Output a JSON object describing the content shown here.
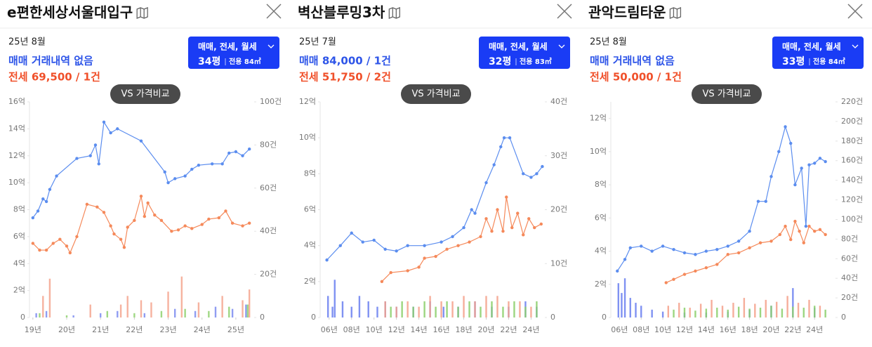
{
  "panels": [
    {
      "title": "e편한세상서울대입구",
      "date": "25년 8월",
      "sale": "매매 거래내역 없음",
      "jeonse": "전세 69,500 / 1건",
      "filter": "매매, 전세, 월세",
      "pyeong": "34평",
      "area": "전용 84㎡",
      "compare": "VS 가격비교"
    },
    {
      "title": "벽산블루밍3차",
      "date": "25년 7월",
      "sale": "매매 84,000 / 1건",
      "jeonse": "전세 51,750 / 2건",
      "filter": "매매, 전세, 월세",
      "pyeong": "32평",
      "area": "전용 83㎡",
      "compare": "VS 가격비교"
    },
    {
      "title": "관악드림타운",
      "date": "25년 8월",
      "sale": "매매 거래내역 없음",
      "jeonse": "전세 50,000 / 1건",
      "filter": "매매, 전세, 월세",
      "pyeong": "33평",
      "area": "전용 84㎡",
      "compare": "VS 가격비교"
    }
  ],
  "chart_data": [
    {
      "type": "line",
      "xlim": [
        2018.9,
        2025.5
      ],
      "ylim": [
        0,
        16
      ],
      "y2lim": [
        0,
        100
      ],
      "xticks": [
        {
          "value": 2019,
          "label": "19년"
        },
        {
          "value": 2020,
          "label": "20년"
        },
        {
          "value": 2021,
          "label": "21년"
        },
        {
          "value": 2022,
          "label": "22년"
        },
        {
          "value": 2023,
          "label": "23년"
        },
        {
          "value": 2024,
          "label": "24년"
        },
        {
          "value": 2025,
          "label": "25년"
        }
      ],
      "yticks": [
        0,
        {
          "value": 2,
          "label": "2억"
        },
        {
          "value": 4,
          "label": "4억"
        },
        {
          "value": 6,
          "label": "6억"
        },
        {
          "value": 8,
          "label": "8억"
        },
        {
          "value": 10,
          "label": "10억"
        },
        {
          "value": 12,
          "label": "12억"
        },
        {
          "value": 14,
          "label": "14억"
        },
        {
          "value": 16,
          "label": "16억"
        }
      ],
      "y2ticks": [
        0,
        {
          "value": 20,
          "label": "20건"
        },
        {
          "value": 40,
          "label": "40건"
        },
        {
          "value": 60,
          "label": "60건"
        },
        {
          "value": 80,
          "label": "80건"
        },
        {
          "value": 100,
          "label": "100건"
        }
      ],
      "series": [
        {
          "type": "bar",
          "axis": "y2",
          "color": "#f4a48e",
          "x": [
            2019.3,
            2019.5,
            2020.7,
            2021.6,
            2021.8,
            2022.2,
            2022.5,
            2023.0,
            2023.4,
            2023.9,
            2024.6,
            2025.2,
            2025.4
          ],
          "values": [
            10,
            18,
            6,
            6,
            10,
            8,
            7,
            12,
            19,
            7,
            10,
            8,
            13
          ]
        },
        {
          "type": "bar",
          "axis": "y2",
          "color": "#7c8cf0",
          "x": [
            2019.1,
            2019.4,
            2020.2,
            2021.0,
            2021.5,
            2022.3,
            2023.2,
            2023.8,
            2024.4,
            2024.9,
            2025.3
          ],
          "values": [
            2,
            3,
            1,
            2,
            3,
            2,
            4,
            3,
            5,
            4,
            6
          ]
        },
        {
          "type": "bar",
          "axis": "y2",
          "color": "#8fd16e",
          "x": [
            2019.2,
            2020.0,
            2021.2,
            2022.0,
            2022.8,
            2023.5,
            2024.2,
            2024.8,
            2025.35
          ],
          "values": [
            2,
            1,
            3,
            2,
            3,
            4,
            3,
            5,
            6
          ]
        },
        {
          "type": "line",
          "color": "#f5895a",
          "x": [
            2019.0,
            2019.2,
            2019.4,
            2019.6,
            2019.8,
            2020.0,
            2020.1,
            2020.3,
            2020.6,
            2020.9,
            2021.1,
            2021.3,
            2021.4,
            2021.6,
            2021.7,
            2021.8,
            2022.0,
            2022.2,
            2022.3,
            2022.4,
            2022.6,
            2022.8,
            2023.1,
            2023.3,
            2023.5,
            2023.7,
            2024.0,
            2024.2,
            2024.5,
            2024.7,
            2024.9,
            2025.2,
            2025.4
          ],
          "values": [
            5.5,
            5.0,
            5.0,
            5.5,
            5.8,
            5.3,
            4.8,
            6.0,
            8.4,
            8.2,
            7.8,
            6.8,
            6.2,
            5.8,
            5.2,
            6.7,
            7.2,
            9.0,
            7.5,
            8.5,
            7.6,
            7.2,
            6.4,
            6.5,
            6.8,
            6.6,
            6.9,
            7.3,
            7.4,
            7.9,
            7.0,
            6.8,
            7.0
          ]
        },
        {
          "type": "line",
          "color": "#5b8def",
          "x": [
            2019.0,
            2019.15,
            2019.3,
            2019.4,
            2019.5,
            2019.7,
            2020.3,
            2020.7,
            2020.85,
            2020.95,
            2021.1,
            2021.3,
            2021.5,
            2022.2,
            2022.9,
            2023.0,
            2023.2,
            2023.5,
            2023.7,
            2023.9,
            2024.3,
            2024.6,
            2024.8,
            2025.0,
            2025.2,
            2025.4
          ],
          "values": [
            7.4,
            7.9,
            8.8,
            8.6,
            9.5,
            10.5,
            11.8,
            12.0,
            12.8,
            11.4,
            14.5,
            13.7,
            14.0,
            13.1,
            10.8,
            10.0,
            10.3,
            10.5,
            11.0,
            11.3,
            11.4,
            11.4,
            12.2,
            12.3,
            12.0,
            12.5
          ]
        }
      ]
    },
    {
      "type": "line",
      "xlim": [
        2005.2,
        2025.1
      ],
      "ylim": [
        0,
        12
      ],
      "y2lim": [
        0,
        40
      ],
      "xticks": [
        {
          "value": 2006,
          "label": "06년"
        },
        {
          "value": 2008,
          "label": "08년"
        },
        {
          "value": 2010,
          "label": "10년"
        },
        {
          "value": 2012,
          "label": "12년"
        },
        {
          "value": 2014,
          "label": "14년"
        },
        {
          "value": 2016,
          "label": "16년"
        },
        {
          "value": 2018,
          "label": "18년"
        },
        {
          "value": 2020,
          "label": "20년"
        },
        {
          "value": 2022,
          "label": "22년"
        },
        {
          "value": 2024,
          "label": "24년"
        }
      ],
      "yticks": [
        0,
        {
          "value": 2,
          "label": "2억"
        },
        {
          "value": 4,
          "label": "4억"
        },
        {
          "value": 6,
          "label": "6억"
        },
        {
          "value": 8,
          "label": "8억"
        },
        {
          "value": 10,
          "label": "10억"
        },
        {
          "value": 12,
          "label": "12억"
        }
      ],
      "y2ticks": [
        0,
        {
          "value": 10,
          "label": "10건"
        },
        {
          "value": 20,
          "label": "20건"
        },
        {
          "value": 30,
          "label": "30건"
        },
        {
          "value": 40,
          "label": "40건"
        }
      ],
      "series": [
        {
          "type": "bar",
          "axis": "y2",
          "color": "#6a7ff0",
          "x": [
            2005.9,
            2006.3,
            2006.5,
            2007.2,
            2008.0,
            2008.7,
            2009.5,
            2010.3,
            2011.0,
            2012.0,
            2013.5,
            2015.0,
            2016.2,
            2017.5,
            2019.0,
            2020.5,
            2022.0,
            2023.5,
            2024.5
          ],
          "values": [
            4,
            2,
            7,
            3,
            2,
            4,
            3,
            2,
            3,
            2,
            2,
            3,
            2,
            2,
            3,
            2,
            2,
            3,
            2
          ]
        },
        {
          "type": "bar",
          "axis": "y2",
          "color": "#f4a08a",
          "x": [
            2011.0,
            2012.0,
            2013.0,
            2014.0,
            2015.0,
            2016.0,
            2017.0,
            2018.0,
            2019.0,
            2020.0,
            2021.0,
            2022.0,
            2023.0,
            2024.0
          ],
          "values": [
            3,
            2,
            3,
            2,
            4,
            3,
            3,
            4,
            3,
            4,
            4,
            3,
            3,
            2
          ]
        },
        {
          "type": "bar",
          "axis": "y2",
          "color": "#8bcf6a",
          "x": [
            2011.5,
            2012.5,
            2013.5,
            2014.5,
            2015.5,
            2016.5,
            2017.5,
            2018.5,
            2019.5,
            2020.5,
            2021.5,
            2022.5,
            2023.5,
            2024.5
          ],
          "values": [
            2,
            3,
            2,
            3,
            2,
            3,
            2,
            3,
            2,
            3,
            2,
            3,
            2,
            3
          ]
        },
        {
          "type": "line",
          "color": "#f5895a",
          "x": [
            2010.7,
            2011.5,
            2013.0,
            2014.0,
            2014.5,
            2015.5,
            2016.5,
            2017.5,
            2018.5,
            2019.5,
            2020.0,
            2020.5,
            2021.0,
            2021.5,
            2021.8,
            2022.3,
            2022.8,
            2023.3,
            2023.8,
            2024.3,
            2024.9
          ],
          "values": [
            2.0,
            2.5,
            2.6,
            2.8,
            3.3,
            3.4,
            3.8,
            4.0,
            4.2,
            4.5,
            5.5,
            4.8,
            6.0,
            4.8,
            6.7,
            5.0,
            5.8,
            4.6,
            5.5,
            5.0,
            5.2
          ]
        },
        {
          "type": "line",
          "color": "#5b8def",
          "x": [
            2005.8,
            2007.0,
            2008.0,
            2009.0,
            2010.0,
            2011.0,
            2012.0,
            2013.0,
            2014.5,
            2016.0,
            2017.0,
            2018.0,
            2018.7,
            2019.0,
            2020.0,
            2020.7,
            2021.3,
            2021.6,
            2022.1,
            2023.3,
            2024.0,
            2024.5,
            2025.0
          ],
          "values": [
            3.2,
            4.0,
            4.7,
            4.2,
            4.3,
            3.8,
            3.7,
            4.0,
            4.0,
            4.2,
            4.5,
            5.0,
            6.0,
            5.8,
            7.5,
            8.5,
            9.5,
            10.0,
            10.0,
            8.0,
            7.8,
            8.0,
            8.4
          ]
        }
      ]
    },
    {
      "type": "line",
      "xlim": [
        2005.2,
        2025.8
      ],
      "ylim": [
        0,
        13
      ],
      "y2lim": [
        0,
        220
      ],
      "xticks": [
        {
          "value": 2006,
          "label": "06년"
        },
        {
          "value": 2008,
          "label": "08년"
        },
        {
          "value": 2010,
          "label": "10년"
        },
        {
          "value": 2012,
          "label": "12년"
        },
        {
          "value": 2014,
          "label": "14년"
        },
        {
          "value": 2016,
          "label": "16년"
        },
        {
          "value": 2018,
          "label": "18년"
        },
        {
          "value": 2020,
          "label": "20년"
        },
        {
          "value": 2022,
          "label": "22년"
        },
        {
          "value": 2024,
          "label": "24년"
        }
      ],
      "yticks": [
        0,
        {
          "value": 2,
          "label": "2억"
        },
        {
          "value": 4,
          "label": "4억"
        },
        {
          "value": 6,
          "label": "6억"
        },
        {
          "value": 8,
          "label": "8억"
        },
        {
          "value": 10,
          "label": "10억"
        },
        {
          "value": 12,
          "label": "12억"
        }
      ],
      "y2ticks": [
        0,
        {
          "value": 20,
          "label": "20건"
        },
        {
          "value": 40,
          "label": "40건"
        },
        {
          "value": 60,
          "label": "60건"
        },
        {
          "value": 80,
          "label": "80건"
        },
        {
          "value": 100,
          "label": "100건"
        },
        {
          "value": 120,
          "label": "120건"
        },
        {
          "value": 140,
          "label": "140건"
        },
        {
          "value": 160,
          "label": "160건"
        },
        {
          "value": 180,
          "label": "180건"
        },
        {
          "value": 200,
          "label": "200건"
        },
        {
          "value": 220,
          "label": "220건"
        }
      ],
      "series": [
        {
          "type": "bar",
          "axis": "y2",
          "color": "#6a7ff0",
          "x": [
            2005.9,
            2006.2,
            2006.5,
            2007.0,
            2007.5,
            2008.0,
            2009.0,
            2010.0,
            2012.0,
            2014.0,
            2016.0,
            2018.0,
            2020.0,
            2022.0,
            2024.0
          ],
          "values": [
            35,
            25,
            40,
            20,
            15,
            12,
            8,
            6,
            5,
            5,
            6,
            8,
            12,
            30,
            10
          ]
        },
        {
          "type": "bar",
          "axis": "y2",
          "color": "#f4a08a",
          "x": [
            2010.5,
            2011.5,
            2012.5,
            2013.5,
            2014.5,
            2015.5,
            2016.5,
            2017.5,
            2018.5,
            2019.5,
            2020.5,
            2021.5,
            2022.5,
            2023.5,
            2024.5
          ],
          "values": [
            12,
            15,
            10,
            14,
            18,
            12,
            15,
            20,
            14,
            18,
            16,
            22,
            15,
            18,
            12
          ]
        },
        {
          "type": "bar",
          "axis": "y2",
          "color": "#8bcf6a",
          "x": [
            2011.0,
            2012.0,
            2013.0,
            2014.0,
            2015.0,
            2016.0,
            2017.0,
            2018.0,
            2019.0,
            2020.0,
            2021.0,
            2022.0,
            2023.0,
            2024.0,
            2025.0
          ],
          "values": [
            8,
            10,
            7,
            9,
            10,
            8,
            11,
            9,
            10,
            12,
            9,
            11,
            10,
            12,
            8
          ]
        },
        {
          "type": "line",
          "color": "#f5895a",
          "x": [
            2010.3,
            2011.0,
            2012.0,
            2013.0,
            2014.0,
            2015.0,
            2016.0,
            2017.0,
            2018.0,
            2019.0,
            2020.0,
            2020.8,
            2021.3,
            2021.8,
            2022.2,
            2022.6,
            2023.0,
            2023.5,
            2024.0,
            2024.5,
            2025.0
          ],
          "values": [
            2.1,
            2.3,
            2.6,
            2.8,
            3.0,
            3.2,
            3.8,
            3.9,
            4.2,
            4.5,
            4.6,
            5.0,
            5.5,
            4.7,
            5.8,
            5.2,
            4.5,
            5.5,
            5.2,
            5.3,
            5.0
          ]
        },
        {
          "type": "line",
          "color": "#5b8def",
          "x": [
            2005.8,
            2006.5,
            2007.0,
            2008.0,
            2009.0,
            2010.0,
            2011.0,
            2012.0,
            2013.0,
            2014.0,
            2015.0,
            2016.0,
            2017.0,
            2018.0,
            2018.8,
            2019.5,
            2020.0,
            2020.7,
            2021.3,
            2021.8,
            2022.2,
            2022.8,
            2023.2,
            2023.5,
            2024.0,
            2024.5,
            2025.0
          ],
          "values": [
            2.8,
            3.5,
            4.2,
            4.3,
            4.0,
            4.3,
            4.1,
            3.9,
            3.8,
            4.0,
            4.1,
            4.3,
            4.6,
            5.2,
            7.0,
            7.0,
            8.5,
            10.0,
            11.5,
            10.5,
            8.0,
            9.0,
            5.5,
            9.2,
            9.3,
            9.6,
            9.4
          ]
        }
      ]
    }
  ]
}
